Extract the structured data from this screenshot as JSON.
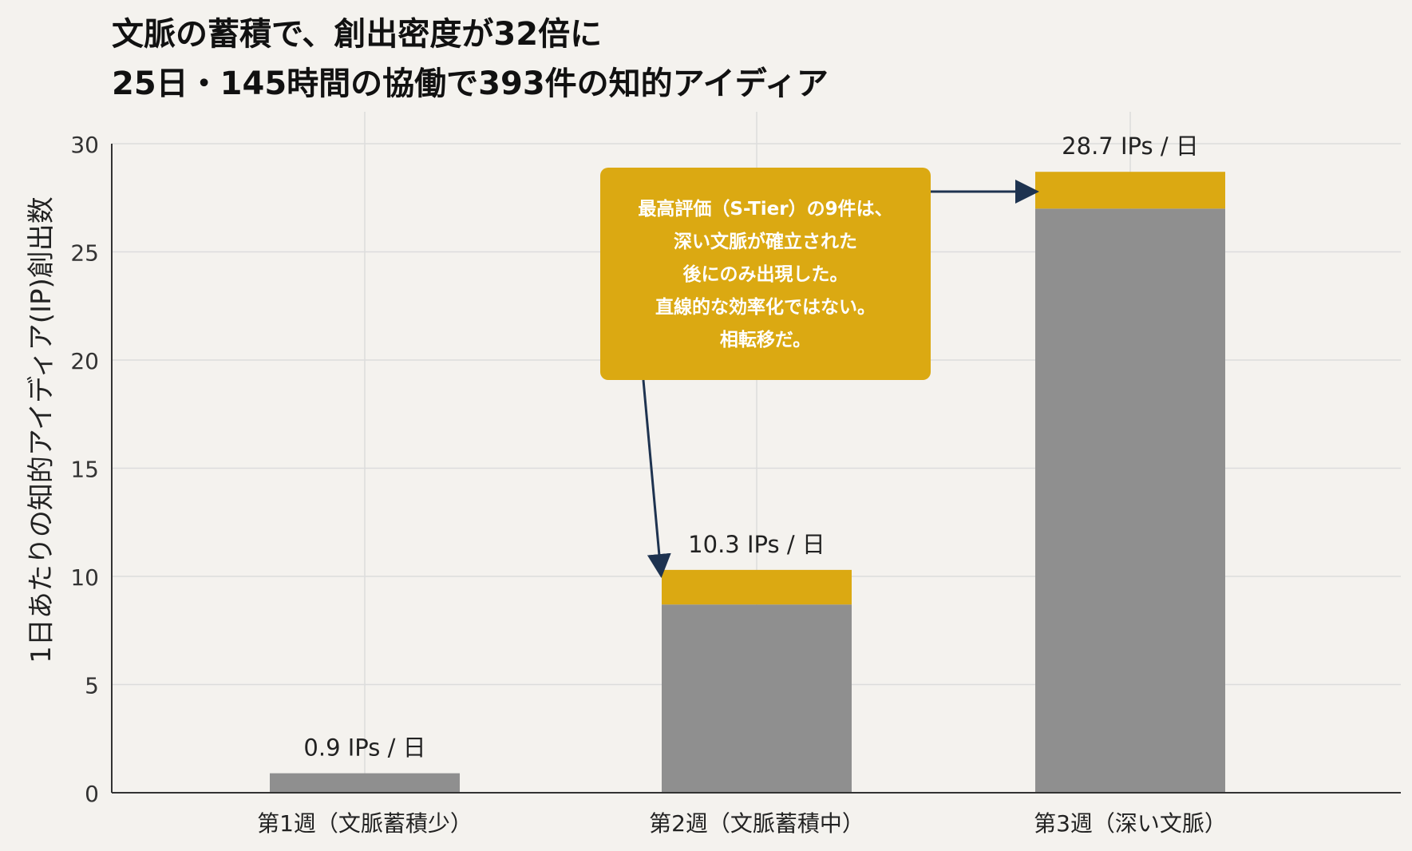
{
  "title_lines": [
    "文脈の蓄積で、創出密度が32倍に",
    "25日・145時間の協働で393件の知的アイディア"
  ],
  "callout": {
    "lines": [
      "最高評価（S-Tier）の9件は、",
      "深い文脈が確立された",
      "後にのみ出現した。",
      "直線的な効率化ではない。",
      "相転移だ。"
    ]
  },
  "colors": {
    "background": "#f4f2ee",
    "base_bar": "#8f8f8f",
    "highlight_bar": "#dba912",
    "arrow": "#1e3350",
    "grid": "#dcdcdc",
    "axis": "#333333"
  },
  "chart_data": {
    "type": "bar",
    "stacked": true,
    "categories": [
      "第1週（文脈蓄積少）",
      "第2週（文脈蓄積中）",
      "第3週（深い文脈）"
    ],
    "series": [
      {
        "values": [
          0.9,
          8.7,
          27.0
        ]
      },
      {
        "values": [
          0,
          1.6,
          1.7
        ]
      }
    ],
    "totals": [
      0.9,
      10.3,
      28.7
    ],
    "data_labels": [
      "0.9 IPs / 日",
      "10.3 IPs / 日",
      "28.7 IPs / 日"
    ],
    "ylabel": "1日あたりの知的アイディア(IP)創出数",
    "xlabel": "",
    "ylim": [
      0,
      30
    ],
    "yticks": [
      0,
      5,
      10,
      15,
      20,
      25,
      30
    ],
    "grid": true
  }
}
